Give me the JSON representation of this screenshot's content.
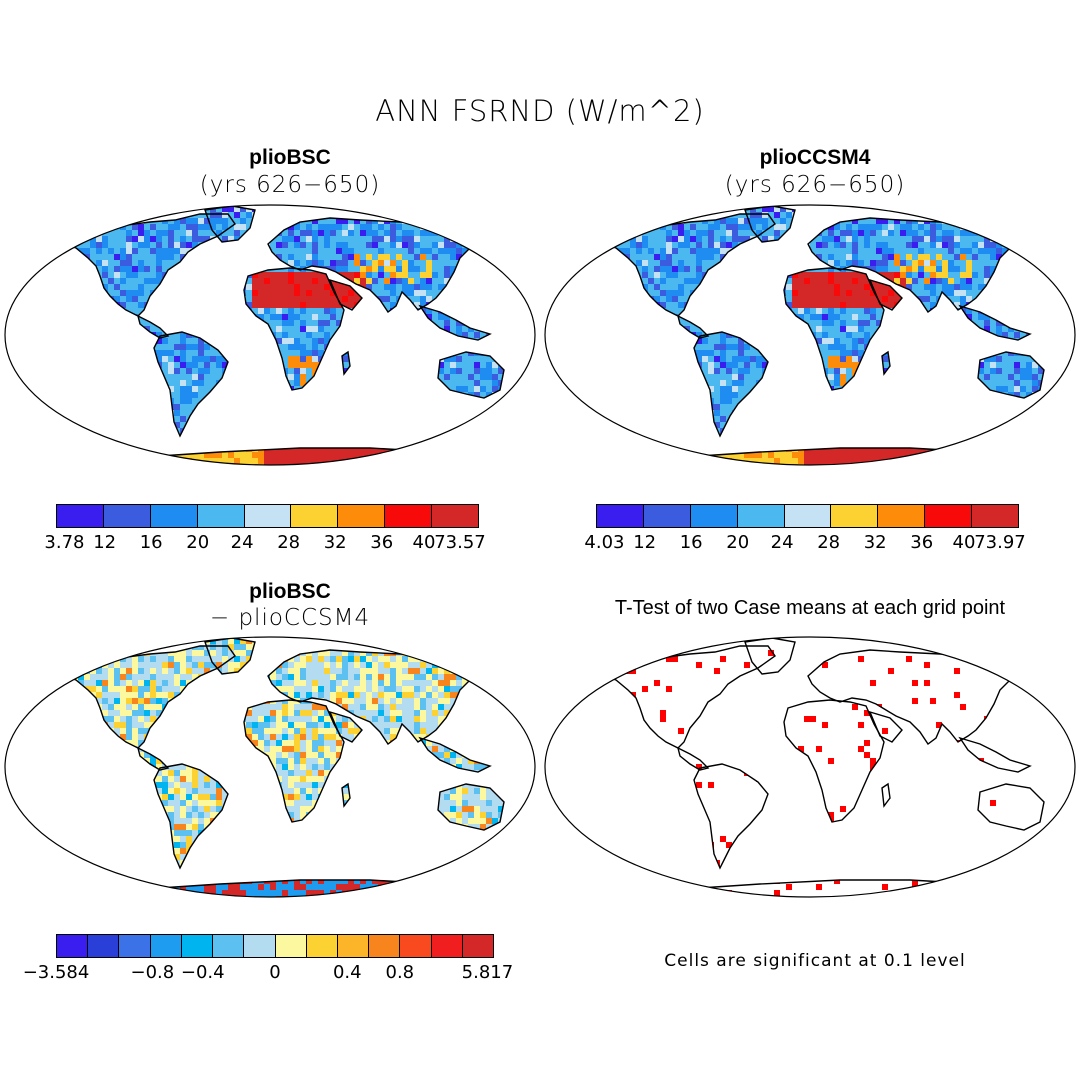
{
  "title": "ANN FSRND (W/m^2)",
  "panels": {
    "top_left": {
      "title": "plioBSC",
      "subtitle": "(yrs 626−650)",
      "colorbar": {
        "colors": [
          "#3a1ef0",
          "#3c5ce0",
          "#1e8cf0",
          "#4cb8f0",
          "#c4e2f4",
          "#fcd232",
          "#fc8c0a",
          "#f80a0a",
          "#d42828"
        ],
        "labels": [
          "3.78",
          "12",
          "16",
          "20",
          "24",
          "28",
          "32",
          "36",
          "40",
          "73.57"
        ]
      }
    },
    "top_right": {
      "title": "plioCCSM4",
      "subtitle": "(yrs 626−650)",
      "colorbar": {
        "colors": [
          "#3a1ef0",
          "#3c5ce0",
          "#1e8cf0",
          "#4cb8f0",
          "#c4e2f4",
          "#fcd232",
          "#fc8c0a",
          "#f80a0a",
          "#d42828"
        ],
        "labels": [
          "4.03",
          "12",
          "16",
          "20",
          "24",
          "28",
          "32",
          "36",
          "40",
          "73.97"
        ]
      }
    },
    "bottom_left": {
      "title": "plioBSC",
      "subtitle": "− plioCCSM4",
      "colorbar": {
        "colors": [
          "#3a1ef0",
          "#2a3ed8",
          "#3c72e8",
          "#1e9cf0",
          "#00b4f0",
          "#5cc0f0",
          "#b4dcf0",
          "#fcf8a0",
          "#fcd232",
          "#fcb428",
          "#f8841e",
          "#f84a1e",
          "#f01e1e",
          "#d42828"
        ],
        "labels": [
          "−3.584",
          "−0.8",
          "−0.4",
          "0",
          "0.4",
          "0.8",
          "5.817"
        ]
      }
    },
    "bottom_right": {
      "title": "T-Test of two Case means at each grid point",
      "note": "Cells are significant at 0.1 level",
      "significance_color": "#ff0000"
    }
  }
}
